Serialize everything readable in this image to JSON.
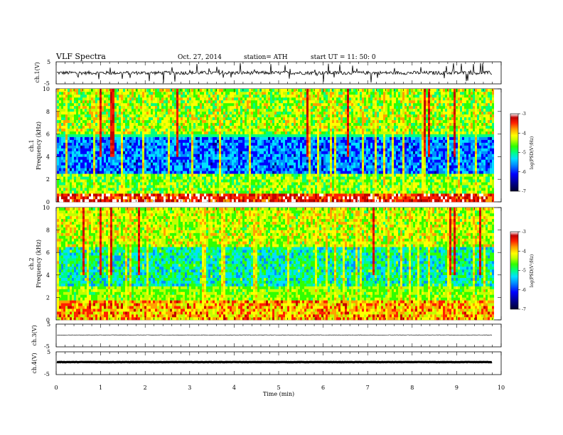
{
  "header": {
    "title": "VLF  Spectra",
    "date": "Oct. 27, 2014",
    "station": "station= ATH",
    "start": "start  UT  =    11: 50: 0"
  },
  "colors": {
    "colormap": [
      "#000030",
      "#00008a",
      "#0000ff",
      "#0090ff",
      "#00e0ff",
      "#00ff80",
      "#30ff00",
      "#c0ff00",
      "#ffff00",
      "#ffa000",
      "#ff2000",
      "#c00000",
      "#ffffff"
    ]
  },
  "chart_data": [
    {
      "type": "line",
      "name": "ch1-waveform",
      "ylabel": "ch.1(V)",
      "ylim": [
        -5,
        5
      ],
      "yticks": [
        "5",
        "-5"
      ],
      "xlim": [
        0,
        10
      ],
      "baseline": 0,
      "note_values": "noisy signal centered near 0 V, spikes up to about +/-4.5 V"
    },
    {
      "type": "heatmap",
      "name": "ch1-spectrogram",
      "ylabel": "ch.1\nFrequency  (kHz)",
      "ylim": [
        0,
        10
      ],
      "yticks": [
        "0",
        "2",
        "4",
        "6",
        "8",
        "10"
      ],
      "xlim": [
        0,
        10
      ],
      "data_end_min": 9.8,
      "colorbar": {
        "label": "log(PSD(V²/Hz)",
        "range": [
          -7,
          -3
        ],
        "ticks": [
          "-3",
          "-4",
          "-5",
          "-6",
          "-7"
        ]
      }
    },
    {
      "type": "heatmap",
      "name": "ch2-spectrogram",
      "ylabel": "ch.2\nFrequency  (kHz)",
      "ylim": [
        0,
        10
      ],
      "yticks": [
        "0",
        "2",
        "4",
        "6",
        "8",
        "10"
      ],
      "xlim": [
        0,
        10
      ],
      "data_end_min": 9.8,
      "colorbar": {
        "label": "log(PSD(V²/Hz)",
        "range": [
          -7,
          -3
        ],
        "ticks": [
          "-3",
          "-4",
          "-5",
          "-6",
          "-7"
        ]
      }
    },
    {
      "type": "line",
      "name": "ch3-waveform",
      "ylabel": "ch.3(V)",
      "ylim": [
        -5,
        5
      ],
      "yticks": [
        "5",
        "-5"
      ],
      "xlim": [
        0,
        10
      ],
      "baseline": 0,
      "note_values": "nearly flat near 0 V"
    },
    {
      "type": "line",
      "name": "ch4-waveform",
      "ylabel": "ch.4(V)",
      "ylim": [
        -5,
        5
      ],
      "yticks": [
        "5",
        "-5"
      ],
      "xlim": [
        0,
        10
      ],
      "baseline": 0,
      "note_values": "thick flat line near 0 V"
    }
  ],
  "xaxis": {
    "label": "Time  (min)",
    "ticks": [
      "0",
      "1",
      "2",
      "3",
      "4",
      "5",
      "6",
      "7",
      "8",
      "9",
      "10"
    ],
    "range": [
      0,
      10
    ]
  }
}
